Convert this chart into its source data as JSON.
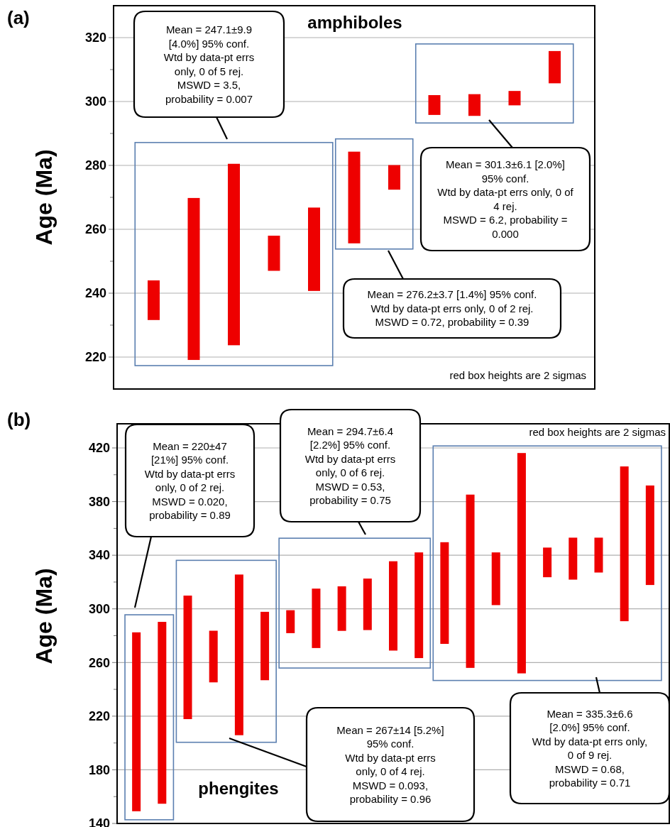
{
  "chart_data": [
    {
      "type": "bar",
      "title": "amphiboles",
      "ylabel": "Age (Ma)",
      "categories": [
        null,
        null,
        null,
        null,
        null,
        null,
        null,
        null,
        null,
        null,
        null
      ],
      "base": [
        231.6,
        219.1,
        223.7,
        247.0,
        240.7,
        255.6,
        272.4,
        295.8,
        295.5,
        298.8,
        305.7
      ],
      "values": [
        12.4,
        50.7,
        56.8,
        11.0,
        26.1,
        28.7,
        7.7,
        6.2,
        6.8,
        4.5,
        10.1
      ],
      "color": "#ee0000",
      "ylim": [
        210,
        330
      ],
      "yticks": [
        220,
        {
          "value": 230,
          "label": null
        },
        240,
        {
          "value": 250,
          "label": null
        },
        260,
        {
          "value": 270,
          "label": null
        },
        280,
        {
          "value": 290,
          "label": null
        },
        300,
        {
          "value": 310,
          "label": null
        },
        320
      ],
      "grid": "y",
      "annotations": [
        "(a)",
        "Mean = 247.1±9.9\n[4.0%]  95% conf.\nWtd by data-pt errs\nonly, 0 of 5 rej.\nMSWD = 3.5,\nprobability = 0.007",
        "Mean = 276.2±3.7  [1.4%]  95% conf.\nWtd by data-pt errs only, 0 of 2 rej.\nMSWD = 0.72, probability = 0.39",
        "Mean = 301.3±6.1  [2.0%]\n95% conf.\nWtd by data-pt errs only, 0 of\n4 rej.\nMSWD = 6.2, probability =\n0.000",
        "red box heights are 2 sigmas"
      ]
    },
    {
      "type": "bar",
      "title": "phengites",
      "ylabel": "Age (Ma)",
      "categories": [
        null,
        null,
        null,
        null,
        null,
        null,
        null,
        null,
        null,
        null,
        null,
        null,
        null,
        null,
        null,
        null,
        null,
        null,
        null,
        null,
        null
      ],
      "base": [
        149.1,
        154.7,
        217.8,
        245.2,
        205.8,
        246.8,
        281.9,
        270.8,
        283.6,
        284.2,
        268.9,
        263.3,
        273.9,
        256.0,
        302.8,
        251.9,
        323.6,
        321.8,
        327.1,
        290.8,
        317.8
      ],
      "values": [
        133.4,
        135.6,
        92.1,
        38.5,
        119.8,
        51.0,
        17.1,
        44.3,
        33.2,
        38.4,
        66.6,
        78.8,
        75.8,
        129.2,
        39.3,
        164.3,
        22.1,
        31.3,
        26.0,
        115.4,
        74.2
      ],
      "color": "#ee0000",
      "ylim": [
        140,
        438
      ],
      "yticks": [
        140,
        {
          "value": 160,
          "label": null
        },
        180,
        {
          "value": 200,
          "label": null
        },
        220,
        {
          "value": 240,
          "label": null
        },
        260,
        {
          "value": 280,
          "label": null
        },
        300,
        {
          "value": 320,
          "label": null
        },
        340,
        {
          "value": 360,
          "label": null
        },
        380,
        {
          "value": 400,
          "label": null
        },
        420
      ],
      "grid": "y",
      "annotations": [
        "(b)",
        "Mean = 220±47\n[21%] 95% conf.\nWtd by data-pt errs\nonly, 0 of 2 rej.\nMSWD = 0.020,\nprobability = 0.89",
        "Mean = 294.7±6.4\n[2.2%] 95% conf.\nWtd by data-pt errs\nonly, 0 of 6 rej.\nMSWD = 0.53,\nprobability = 0.75",
        "Mean = 267±14  [5.2%]\n95% conf.\nWtd by data-pt errs\nonly, 0 of 4 rej.\nMSWD = 0.093,\nprobability = 0.96",
        "Mean = 335.3±6.6\n[2.0%] 95% conf.\nWtd by data-pt errs only,\n0 of 9 rej.\nMSWD = 0.68,\nprobability = 0.71",
        "red box heights are 2 sigmas"
      ]
    }
  ]
}
